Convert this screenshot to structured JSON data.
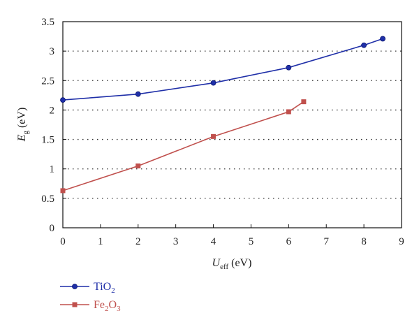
{
  "chart_data": {
    "type": "line",
    "title": "",
    "xlabel": {
      "main": "U",
      "sub": "eff",
      "unit": " (eV)"
    },
    "ylabel": {
      "main": "E",
      "sub": "g",
      "unit": " (eV)"
    },
    "xlim": [
      0,
      9
    ],
    "ylim": [
      0,
      3.5
    ],
    "xticks": [
      "0",
      "1",
      "2",
      "3",
      "4",
      "5",
      "6",
      "7",
      "8",
      "9"
    ],
    "yticks": [
      "0",
      "0.5",
      "1",
      "1.5",
      "2",
      "2.5",
      "3",
      "3.5"
    ],
    "grid": "horizontal dotted",
    "legend_position": "bottom-left",
    "series": [
      {
        "name": "TiO2",
        "label": {
          "base": "TiO",
          "sub": "2"
        },
        "color": "#1f2fa8",
        "marker": "circle",
        "x": [
          0,
          2,
          4,
          6,
          8,
          8.5
        ],
        "y": [
          2.17,
          2.27,
          2.46,
          2.72,
          3.1,
          3.21
        ]
      },
      {
        "name": "Fe2O3",
        "label": {
          "base": "Fe",
          "sub1": "2",
          "mid": "O",
          "sub2": "3"
        },
        "color": "#c0504d",
        "marker": "square",
        "x": [
          0,
          2,
          4,
          6,
          6.4
        ],
        "y": [
          0.63,
          1.05,
          1.55,
          1.97,
          2.14
        ]
      }
    ]
  }
}
